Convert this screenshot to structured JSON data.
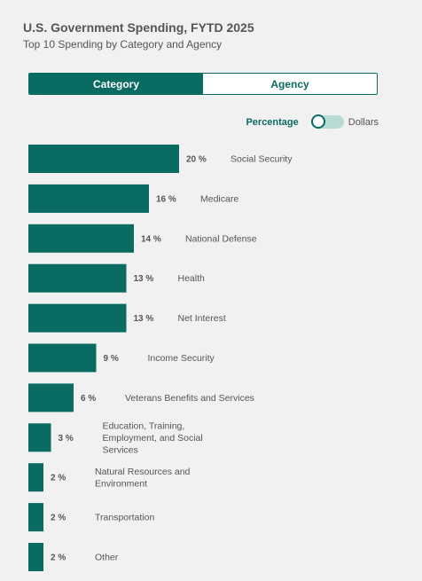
{
  "header": {
    "title": "U.S. Government Spending, FYTD 2025",
    "subtitle": "Top 10 Spending by Category and Agency"
  },
  "view_toggle": {
    "category_label": "Category",
    "agency_label": "Agency",
    "selected": "Category"
  },
  "unit_toggle": {
    "percentage_label": "Percentage",
    "dollars_label": "Dollars",
    "selected": "Percentage"
  },
  "colors": {
    "accent": "#0a6b62",
    "bar": "#0a6b62"
  },
  "chart_data": {
    "type": "bar",
    "orientation": "horizontal",
    "categories": [
      "Social Security",
      "Medicare",
      "National Defense",
      "Health",
      "Net Interest",
      "Income Security",
      "Veterans Benefits and Services",
      "Education, Training, Employment, and Social Services",
      "Natural Resources and Environment",
      "Transportation",
      "Other"
    ],
    "category_lines": [
      [
        "Social Security"
      ],
      [
        "Medicare"
      ],
      [
        "National Defense"
      ],
      [
        "Health"
      ],
      [
        "Net Interest"
      ],
      [
        "Income Security"
      ],
      [
        "Veterans Benefits and Services"
      ],
      [
        "Education, Training,",
        "Employment, and Social",
        "Services"
      ],
      [
        "Natural Resources and",
        "Environment"
      ],
      [
        "Transportation"
      ],
      [
        "Other"
      ]
    ],
    "values": [
      20,
      16,
      14,
      13,
      13,
      9,
      6,
      3,
      2,
      2,
      2
    ],
    "value_labels": [
      "20 %",
      "16 %",
      "14 %",
      "13 %",
      "13 %",
      "9 %",
      "6 %",
      "3 %",
      "2 %",
      "2 %",
      "2 %"
    ],
    "unit": "%"
  }
}
